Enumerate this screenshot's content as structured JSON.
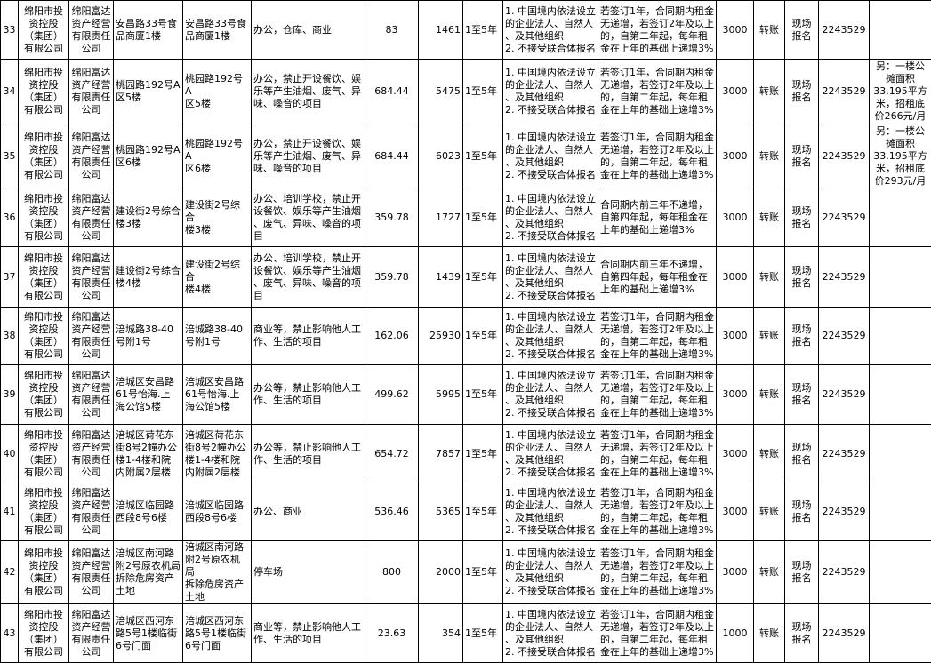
{
  "rows": [
    {
      "no": "33",
      "owner": "绵阳市投\n资控股\n（集团）\n有限公司",
      "company": "绵阳富达\n资产经营\n有限责任\n公司",
      "location": "安昌路33号食\n品商厦1楼",
      "address": "安昌路33号食\n品商厦1楼",
      "usage": "办公，仓库、商业",
      "area": "83",
      "price": "1461",
      "term": "1至5年",
      "conditions": "1. 中国境内依法设立\n的企业法人、自然人\n、及其他组织\n2. 不接受联合体报名",
      "increase": "若签订1年，合同期内租金\n无递增，若签订2年及以上\n的，自第二年起，每年租\n金在上年的基础上递增3%",
      "deposit": "3000",
      "payment": "转账",
      "registration": "现场\n报名",
      "phone": "2243529",
      "remarks": ""
    },
    {
      "no": "34",
      "owner": "绵阳市投\n资控股\n（集团）\n有限公司",
      "company": "绵阳富达\n资产经营\n有限责任\n公司",
      "location": "桃园路192号A\n区5楼",
      "address": "桃园路192号A\n区5楼",
      "usage": "办公，禁止开设餐饮、娱\n乐等产生油烟、废气、异\n味、噪音的项目",
      "area": "684.44",
      "price": "5475",
      "term": "1至5年",
      "conditions": "1. 中国境内依法设立\n的企业法人、自然人\n、及其他组织\n2. 不接受联合体报名",
      "increase": "若签订1年，合同期内租金\n无递增，若签订2年及以上\n的，自第二年起，每年租\n金在上年的基础上递增3%",
      "deposit": "3000",
      "payment": "转账",
      "registration": "现场\n报名",
      "phone": "2243529",
      "remarks": "另：一楼公\n摊面积\n33.195平方\n米，招租底\n价266元/月"
    },
    {
      "no": "35",
      "owner": "绵阳市投\n资控股\n（集团）\n有限公司",
      "company": "绵阳富达\n资产经营\n有限责任\n公司",
      "location": "桃园路192号A\n区6楼",
      "address": "桃园路192号A\n区6楼",
      "usage": "办公，禁止开设餐饮、娱\n乐等产生油烟、废气、异\n味、噪音的项目",
      "area": "684.44",
      "price": "6023",
      "term": "1至5年",
      "conditions": "1. 中国境内依法设立\n的企业法人、自然人\n、及其他组织\n2. 不接受联合体报名",
      "increase": "若签订1年，合同期内租金\n无递增，若签订2年及以上\n的，自第二年起，每年租\n金在上年的基础上递增3%",
      "deposit": "3000",
      "payment": "转账",
      "registration": "现场\n报名",
      "phone": "2243529",
      "remarks": "另：一楼公\n摊面积\n33.195平方\n米，招租底\n价293元/月"
    },
    {
      "no": "36",
      "owner": "绵阳市投\n资控股\n（集团）\n有限公司",
      "company": "绵阳富达\n资产经营\n有限责任\n公司",
      "location": "建设街2号综合\n楼3楼",
      "address": "建设街2号综合\n楼3楼",
      "usage": "办公、培训学校，禁止开\n设餐饮、娱乐等产生油烟\n、废气、异味、噪音的项\n目",
      "area": "359.78",
      "price": "1727",
      "term": "1至5年",
      "conditions": "1. 中国境内依法设立\n的企业法人、自然人\n、及其他组织\n2. 不接受联合体报名",
      "increase": "合同期内前三年不递增，\n自第四年起，每年租金在\n上年的基础上递增3%",
      "deposit": "3000",
      "payment": "转账",
      "registration": "现场\n报名",
      "phone": "2243529",
      "remarks": ""
    },
    {
      "no": "37",
      "owner": "绵阳市投\n资控股\n（集团）\n有限公司",
      "company": "绵阳富达\n资产经营\n有限责任\n公司",
      "location": "建设街2号综合\n楼4楼",
      "address": "建设街2号综合\n楼4楼",
      "usage": "办公、培训学校，禁止开\n设餐饮、娱乐等产生油烟\n、废气、异味、噪音的项\n目",
      "area": "359.78",
      "price": "1439",
      "term": "1至5年",
      "conditions": "1. 中国境内依法设立\n的企业法人、自然人\n、及其他组织\n2. 不接受联合体报名",
      "increase": "合同期内前三年不递增，\n自第四年起，每年租金在\n上年的基础上递增3%",
      "deposit": "3000",
      "payment": "转账",
      "registration": "现场\n报名",
      "phone": "2243529",
      "remarks": ""
    },
    {
      "no": "38",
      "owner": "绵阳市投\n资控股\n（集团）\n有限公司",
      "company": "绵阳富达\n资产经营\n有限责任\n公司",
      "location": "涪城路38-40\n号附1号",
      "address": "涪城路38-40\n号附1号",
      "usage": "商业等，禁止影响他人工\n作、生活的项目",
      "area": "162.06",
      "price": "25930",
      "term": "1至5年",
      "conditions": "1. 中国境内依法设立\n的企业法人、自然人\n、及其他组织\n2. 不接受联合体报名",
      "increase": "若签订1年，合同期内租金\n无递增，若签订2年及以上\n的，自第二年起，每年租\n金在上年的基础上递增3%",
      "deposit": "3000",
      "payment": "转账",
      "registration": "现场\n报名",
      "phone": "2243529",
      "remarks": ""
    },
    {
      "no": "39",
      "owner": "绵阳市投\n资控股\n（集团）\n有限公司",
      "company": "绵阳富达\n资产经营\n有限责任\n公司",
      "location": "涪城区安昌路\n61号怡海.上\n海公馆5楼",
      "address": "涪城区安昌路\n61号怡海.上\n海公馆5楼",
      "usage": "办公等，禁止影响他人工\n作、生活的项目",
      "area": "499.62",
      "price": "5995",
      "term": "1至5年",
      "conditions": "1. 中国境内依法设立\n的企业法人、自然人\n、及其他组织\n2. 不接受联合体报名",
      "increase": "若签订1年，合同期内租金\n无递增，若签订2年及以上\n的，自第二年起，每年租\n金在上年的基础上递增3%",
      "deposit": "3000",
      "payment": "转账",
      "registration": "现场\n报名",
      "phone": "2243529",
      "remarks": ""
    },
    {
      "no": "40",
      "owner": "绵阳市投\n资控股\n（集团）\n有限公司",
      "company": "绵阳富达\n资产经营\n有限责任\n公司",
      "location": "涪城区荷花东\n街8号2幢办公\n楼1-4楼和院\n内附属2层楼",
      "address": "涪城区荷花东\n街8号2幢办公\n楼1-4楼和院\n内附属2层楼",
      "usage": "办公等，禁止影响他人工\n作、生活的项目",
      "area": "654.72",
      "price": "7857",
      "term": "1至5年",
      "conditions": "1. 中国境内依法设立\n的企业法人、自然人\n、及其他组织\n2. 不接受联合体报名",
      "increase": "若签订1年，合同期内租金\n无递增，若签订2年及以上\n的，自第二年起，每年租\n金在上年的基础上递增3%",
      "deposit": "3000",
      "payment": "转账",
      "registration": "现场\n报名",
      "phone": "2243529",
      "remarks": ""
    },
    {
      "no": "41",
      "owner": "绵阳市投\n资控股\n（集团）\n有限公司",
      "company": "绵阳富达\n资产经营\n有限责任\n公司",
      "location": "涪城区临园路\n西段8号6楼",
      "address": "涪城区临园路\n西段8号6楼",
      "usage": "办公、商业",
      "area": "536.46",
      "price": "5365",
      "term": "1至5年",
      "conditions": "1. 中国境内依法设立\n的企业法人、自然人\n、及其他组织\n2. 不接受联合体报名",
      "increase": "若签订1年，合同期内租金\n无递增，若签订2年及以上\n的，自第二年起，每年租\n金在上年的基础上递增3%",
      "deposit": "3000",
      "payment": "转账",
      "registration": "现场\n报名",
      "phone": "2243529",
      "remarks": ""
    },
    {
      "no": "42",
      "owner": "绵阳市投\n资控股\n（集团）\n有限公司",
      "company": "绵阳富达\n资产经营\n有限责任\n公司",
      "location": "涪城区南河路\n附2号原农机局\n拆除危房资产\n土地",
      "address": "涪城区南河路\n附2号原农机局\n拆除危房资产\n土地",
      "usage": "停车场",
      "area": "800",
      "price": "2000",
      "term": "1至5年",
      "conditions": "1. 中国境内依法设立\n的企业法人、自然人\n、及其他组织\n2. 不接受联合体报名",
      "increase": "若签订1年，合同期内租金\n无递增，若签订2年及以上\n的，自第二年起，每年租\n金在上年的基础上递增3%",
      "deposit": "3000",
      "payment": "转账",
      "registration": "现场\n报名",
      "phone": "2243529",
      "remarks": ""
    },
    {
      "no": "43",
      "owner": "绵阳市投\n资控股\n（集团）\n有限公司",
      "company": "绵阳富达\n资产经营\n有限责任\n公司",
      "location": "涪城区西河东\n路5号1楼临街\n6号门面",
      "address": "涪城区西河东\n路5号1楼临街\n6号门面",
      "usage": "商业等，禁止影响他人工\n作、生活的项目",
      "area": "23.63",
      "price": "354",
      "term": "1至5年",
      "conditions": "1. 中国境内依法设立\n的企业法人、自然人\n、及其他组织\n2. 不接受联合体报名",
      "increase": "若签订1年，合同期内租金\n无递增，若签订2年及以上\n的，自第二年起，每年租\n金在上年的基础上递增3%",
      "deposit": "1000",
      "payment": "转账",
      "registration": "现场\n报名",
      "phone": "2243529",
      "remarks": ""
    }
  ]
}
